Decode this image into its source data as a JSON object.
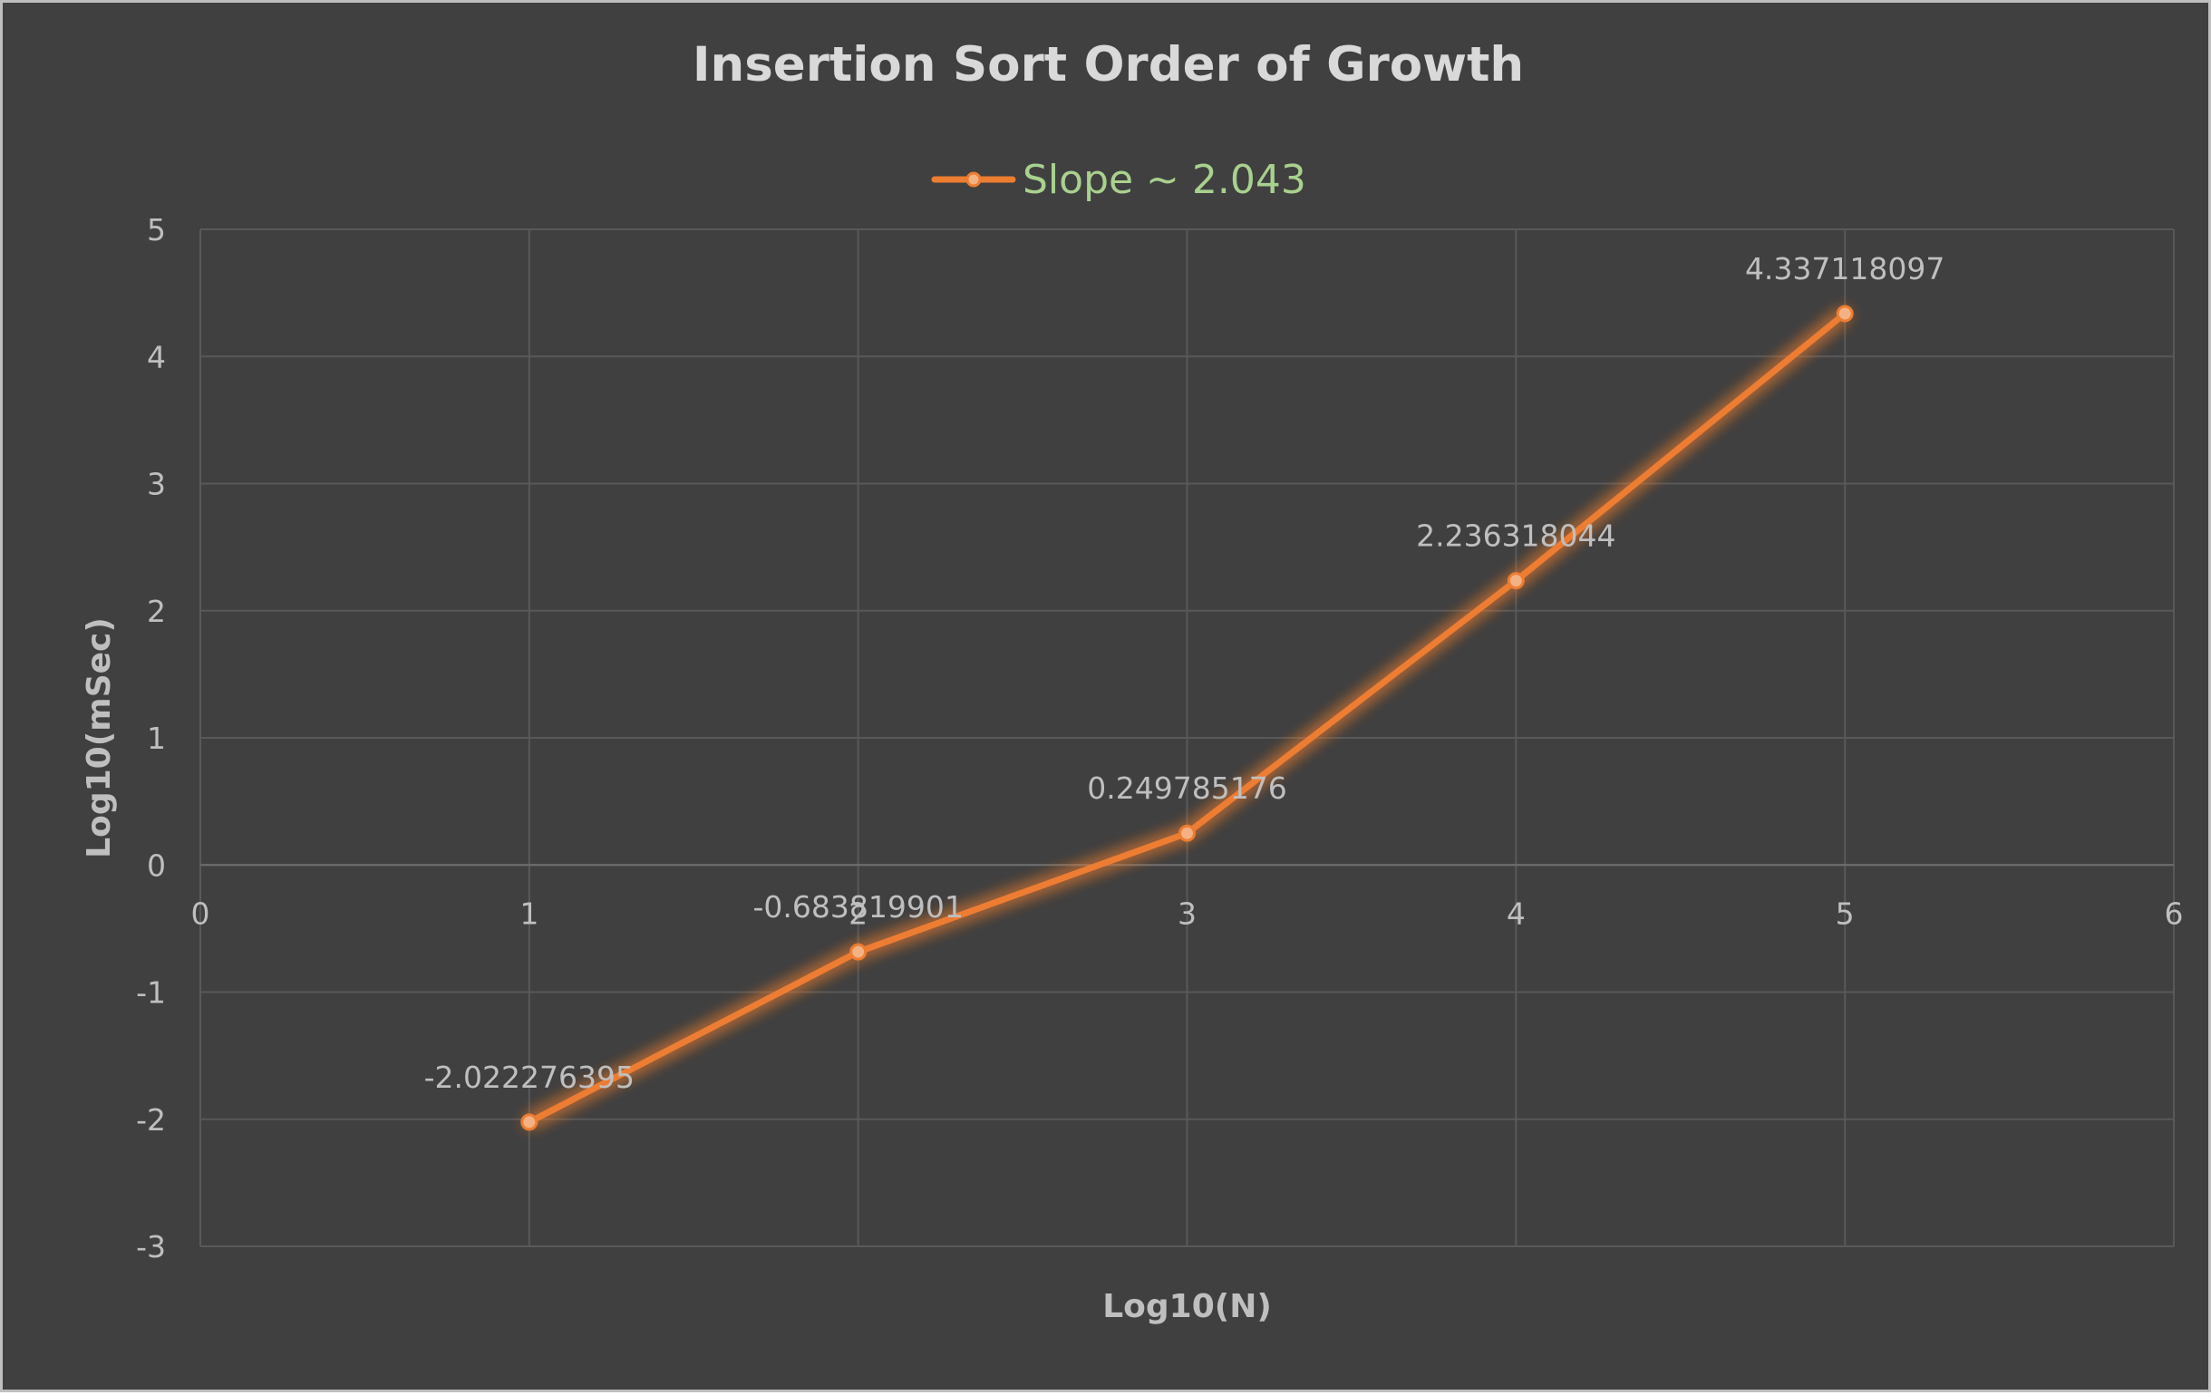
{
  "chart_data": {
    "type": "line",
    "title": "Insertion Sort Order of Growth",
    "xlabel": "Log10(N)",
    "ylabel": "Log10(mSec)",
    "xlim": [
      0,
      6
    ],
    "ylim": [
      -3,
      5
    ],
    "x_ticks": [
      "0",
      "1",
      "2",
      "3",
      "4",
      "5",
      "6"
    ],
    "y_ticks": [
      "5",
      "4",
      "3",
      "2",
      "1",
      "0",
      "-1",
      "-2",
      "-3"
    ],
    "grid": true,
    "legend_position": "top",
    "series": [
      {
        "name": "Slope ~ 2.043",
        "color": "#ed7d31",
        "points": [
          {
            "x": 1,
            "y": -2.022276395,
            "label": "-2.022276395"
          },
          {
            "x": 2,
            "y": -0.683819901,
            "label": "-0.683819901"
          },
          {
            "x": 3,
            "y": 0.249785176,
            "label": "0.249785176"
          },
          {
            "x": 4,
            "y": 2.236318044,
            "label": "2.236318044"
          },
          {
            "x": 5,
            "y": 4.337118097,
            "label": "4.337118097"
          }
        ]
      }
    ]
  },
  "colors": {
    "background": "#404040",
    "gridline": "#595959",
    "text": "#bfbfbf",
    "title": "#d9d9d9",
    "legend_text": "#a9d18e",
    "series": "#ed7d31"
  }
}
